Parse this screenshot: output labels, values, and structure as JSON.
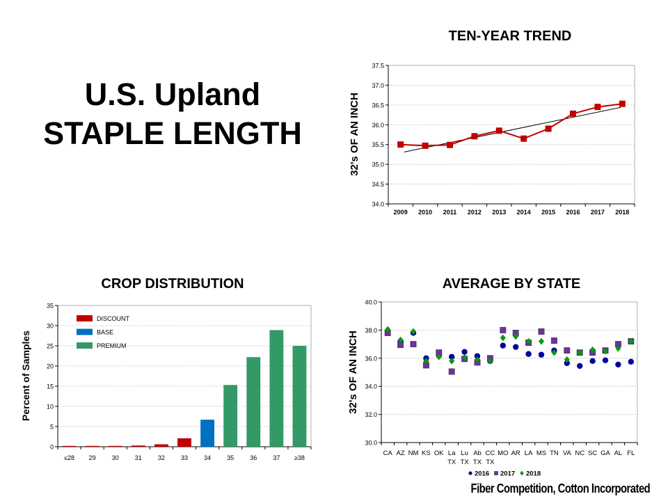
{
  "main_title": {
    "line1": "U.S. Upland",
    "line2": "STAPLE LENGTH"
  },
  "footer": "Fiber Competition, Cotton Incorporated",
  "chart_data": [
    {
      "id": "trend",
      "type": "line",
      "title": "TEN-YEAR TREND",
      "ylabel": "32's OF AN INCH",
      "xlabel": "",
      "categories": [
        "2009",
        "2010",
        "2011",
        "2012",
        "2013",
        "2014",
        "2015",
        "2016",
        "2017",
        "2018"
      ],
      "values": [
        35.5,
        35.47,
        35.49,
        35.71,
        35.85,
        35.65,
        35.9,
        36.28,
        36.45,
        36.53
      ],
      "trendline": {
        "start": 35.31,
        "end": 36.44,
        "color": "#000000"
      },
      "ylim": [
        34.0,
        37.5
      ],
      "yticks": [
        "34.0",
        "34.5",
        "35.0",
        "35.5",
        "36.0",
        "36.5",
        "37.0",
        "37.5"
      ],
      "grid": true,
      "color": "#c00000"
    },
    {
      "id": "dist",
      "type": "bar",
      "title": "CROP DISTRIBUTION",
      "ylabel": "Percent of Samples",
      "xlabel": "",
      "categories": [
        "≤28",
        "29",
        "30",
        "31",
        "32",
        "33",
        "34",
        "35",
        "36",
        "37",
        "≥38"
      ],
      "values": [
        0.2,
        0.2,
        0.2,
        0.3,
        0.6,
        2.1,
        6.7,
        15.3,
        22.2,
        28.9,
        25.0
      ],
      "classes": [
        "DISCOUNT",
        "DISCOUNT",
        "DISCOUNT",
        "DISCOUNT",
        "DISCOUNT",
        "DISCOUNT",
        "BASE",
        "PREMIUM",
        "PREMIUM",
        "PREMIUM",
        "PREMIUM"
      ],
      "ylim": [
        0,
        35
      ],
      "yticks": [
        "0",
        "5",
        "10",
        "15",
        "20",
        "25",
        "30",
        "35"
      ],
      "grid": true,
      "legend_position": "top-left",
      "legend": [
        {
          "name": "DISCOUNT",
          "color": "#c00000"
        },
        {
          "name": "BASE",
          "color": "#0070c0"
        },
        {
          "name": "PREMIUM",
          "color": "#339966"
        }
      ]
    },
    {
      "id": "state",
      "type": "scatter",
      "title": "AVERAGE BY STATE",
      "ylabel": "32's OF AN INCH",
      "xlabel": "",
      "categories": [
        [
          "CA",
          ""
        ],
        [
          "AZ",
          ""
        ],
        [
          "NM",
          ""
        ],
        [
          "KS",
          ""
        ],
        [
          "OK",
          ""
        ],
        [
          "La",
          "TX"
        ],
        [
          "Lu",
          "TX"
        ],
        [
          "Ab",
          "TX"
        ],
        [
          "CC",
          "TX"
        ],
        [
          "MO",
          ""
        ],
        [
          "AR",
          ""
        ],
        [
          "LA",
          ""
        ],
        [
          "MS",
          ""
        ],
        [
          "TN",
          ""
        ],
        [
          "VA",
          ""
        ],
        [
          "NC",
          ""
        ],
        [
          "SC",
          ""
        ],
        [
          "GA",
          ""
        ],
        [
          "AL",
          ""
        ],
        [
          "FL",
          ""
        ]
      ],
      "ylim": [
        30.0,
        40.0
      ],
      "yticks": [
        "30.0",
        "32.0",
        "34.0",
        "36.0",
        "38.0",
        "40.0"
      ],
      "grid": true,
      "legend_position": "bottom",
      "series": [
        {
          "name": "2016",
          "marker": "circle",
          "color": "#0000a0",
          "values": [
            37.8,
            37.2,
            37.8,
            36.0,
            36.2,
            36.1,
            36.45,
            36.15,
            35.8,
            36.9,
            36.8,
            36.3,
            36.25,
            36.55,
            35.65,
            35.45,
            35.8,
            35.85,
            35.55,
            35.75
          ]
        },
        {
          "name": "2017",
          "marker": "square",
          "color": "#7030a0",
          "values": [
            37.8,
            36.95,
            37.0,
            35.5,
            36.4,
            35.05,
            35.95,
            35.7,
            36.0,
            38.0,
            37.8,
            37.1,
            37.9,
            37.25,
            36.55,
            36.4,
            36.4,
            36.55,
            37.0,
            37.2
          ]
        },
        {
          "name": "2018",
          "marker": "diamond",
          "color": "#00a000",
          "values": [
            38.05,
            37.3,
            37.9,
            35.8,
            36.1,
            35.8,
            36.05,
            35.9,
            35.8,
            37.45,
            37.55,
            37.2,
            37.2,
            36.4,
            35.9,
            36.4,
            36.6,
            36.5,
            36.7,
            37.2
          ]
        }
      ]
    }
  ]
}
